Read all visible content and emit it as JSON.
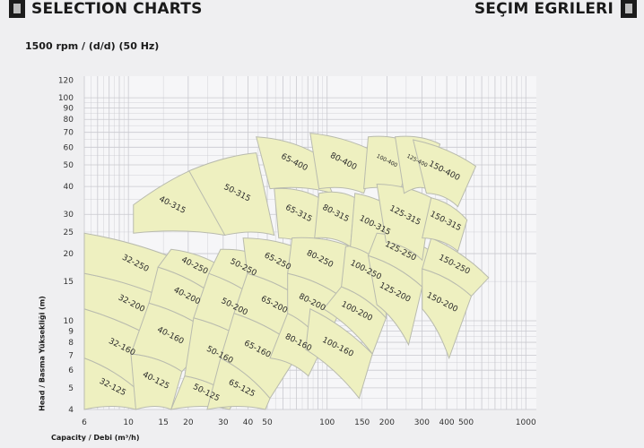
{
  "header": {
    "title_left": "SELECTION CHARTS",
    "title_right": "SEÇIM EGRILERI",
    "icon": "notebook-icon"
  },
  "chart_data": {
    "type": "area",
    "title": "1500 rpm / (d/d) (50 Hz)",
    "xlabel": "Capacity / Debi (m³/h)",
    "ylabel": "Head / Basma Yüksekliği (m)",
    "xscale": "log",
    "yscale": "log",
    "xlim": [
      6,
      1130
    ],
    "ylim": [
      4,
      125
    ],
    "grid": true,
    "fill_color": "#eef0c0",
    "edge_color": "#b9bbae",
    "grid_color": "#c9c9cf",
    "xticks": [
      6,
      10,
      15,
      20,
      30,
      40,
      50,
      100,
      150,
      200,
      300,
      400,
      500,
      1000
    ],
    "yticks": [
      4,
      5,
      6,
      7,
      8,
      9,
      10,
      15,
      20,
      25,
      30,
      40,
      50,
      60,
      70,
      80,
      90,
      100,
      120
    ],
    "regions": [
      {
        "label": "32-125",
        "corners": [
          [
            6,
            6.8
          ],
          [
            11.7,
            4.7
          ],
          [
            10.9,
            4.0
          ],
          [
            6,
            4.0
          ]
        ]
      },
      {
        "label": "32-160",
        "corners": [
          [
            6,
            11.3
          ],
          [
            16.8,
            7.44
          ],
          [
            11.7,
            4.7
          ],
          [
            6,
            6.8
          ]
        ]
      },
      {
        "label": "32-200",
        "corners": [
          [
            6,
            16.3
          ],
          [
            18.2,
            11.8
          ],
          [
            16.8,
            7.44
          ],
          [
            6,
            11.3
          ]
        ]
      },
      {
        "label": "32-250",
        "corners": [
          [
            6,
            24.7
          ],
          [
            20.2,
            17.9
          ],
          [
            18.2,
            11.8
          ],
          [
            6,
            16.3
          ]
        ]
      },
      {
        "label": "40-125",
        "corners": [
          [
            10.3,
            7.1
          ],
          [
            18.6,
            5.92
          ],
          [
            16.4,
            4.0
          ],
          [
            10.9,
            4.0
          ]
        ]
      },
      {
        "label": "40-160",
        "corners": [
          [
            12.7,
            12.0
          ],
          [
            27.6,
            8.55
          ],
          [
            18.6,
            5.92
          ],
          [
            10.3,
            7.1
          ]
        ]
      },
      {
        "label": "40-200",
        "corners": [
          [
            14.1,
            17.4
          ],
          [
            29.1,
            12.4
          ],
          [
            27.6,
            8.55
          ],
          [
            12.7,
            12.0
          ]
        ]
      },
      {
        "label": "40-250",
        "corners": [
          [
            16.4,
            20.9
          ],
          [
            30.6,
            17.1
          ],
          [
            29.1,
            12.4
          ],
          [
            14.1,
            17.4
          ]
        ]
      },
      {
        "label": "40-315",
        "corners": [
          [
            10.6,
            33.1
          ],
          [
            21.3,
            47.9
          ],
          [
            30.6,
            24.2
          ],
          [
            10.6,
            24.7
          ]
        ]
      },
      {
        "label": "50-125",
        "corners": [
          [
            19.2,
            5.65
          ],
          [
            34.7,
            4.49
          ],
          [
            32.3,
            4.0
          ],
          [
            16.4,
            4.0
          ]
        ]
      },
      {
        "label": "50-160",
        "corners": [
          [
            21.3,
            10.3
          ],
          [
            46.5,
            7.44
          ],
          [
            34.7,
            4.49
          ],
          [
            19.2,
            5.65
          ]
        ]
      },
      {
        "label": "50-200",
        "corners": [
          [
            25.4,
            16.3
          ],
          [
            51.6,
            11.3
          ],
          [
            46.5,
            7.44
          ],
          [
            21.3,
            10.3
          ]
        ]
      },
      {
        "label": "50-250",
        "corners": [
          [
            29.1,
            20.9
          ],
          [
            51.6,
            18.7
          ],
          [
            51.6,
            11.3
          ],
          [
            25.4,
            16.3
          ]
        ]
      },
      {
        "label": "50-315",
        "corners": [
          [
            20.2,
            47.0
          ],
          [
            44.0,
            56.6
          ],
          [
            54.2,
            24.2
          ],
          [
            30.6,
            24.2
          ]
        ]
      },
      {
        "label": "65-125",
        "corners": [
          [
            29.1,
            6.8
          ],
          [
            51.6,
            4.49
          ],
          [
            48.9,
            4.0
          ],
          [
            24.9,
            4.0
          ]
        ]
      },
      {
        "label": "65-160",
        "corners": [
          [
            34.0,
            10.8
          ],
          [
            74.0,
            7.44
          ],
          [
            51.6,
            4.49
          ],
          [
            29.1,
            6.8
          ]
        ]
      },
      {
        "label": "65-200",
        "corners": [
          [
            39.7,
            16.3
          ],
          [
            82.2,
            11.8
          ],
          [
            74.0,
            7.44
          ],
          [
            34.0,
            10.8
          ]
        ]
      },
      {
        "label": "65-250",
        "corners": [
          [
            37.8,
            23.5
          ],
          [
            78.0,
            20.5
          ],
          [
            82.2,
            11.8
          ],
          [
            39.7,
            16.3
          ]
        ]
      },
      {
        "label": "65-315",
        "corners": [
          [
            54.2,
            39.1
          ],
          [
            91.0,
            35.6
          ],
          [
            91.0,
            20.5
          ],
          [
            57.1,
            23.5
          ]
        ]
      },
      {
        "label": "65-400",
        "corners": [
          [
            44.0,
            66.8
          ],
          [
            86.5,
            56.6
          ],
          [
            106.5,
            37.3
          ],
          [
            51.6,
            39.1
          ]
        ]
      },
      {
        "label": "80-160",
        "corners": [
          [
            63.3,
            10.8
          ],
          [
            96.0,
            7.8
          ],
          [
            80.5,
            5.65
          ],
          [
            51.6,
            6.8
          ]
        ]
      },
      {
        "label": "80-200",
        "corners": [
          [
            63.3,
            16.3
          ],
          [
            124,
            12.4
          ],
          [
            96.0,
            7.8
          ],
          [
            63.3,
            10.8
          ]
        ]
      },
      {
        "label": "80-250",
        "corners": [
          [
            66.6,
            23.5
          ],
          [
            131,
            21.5
          ],
          [
            124,
            12.4
          ],
          [
            63.3,
            16.3
          ]
        ]
      },
      {
        "label": "80-315",
        "corners": [
          [
            91.0,
            37.3
          ],
          [
            138,
            35.6
          ],
          [
            131,
            21.5
          ],
          [
            86.5,
            23.5
          ]
        ]
      },
      {
        "label": "80-400",
        "corners": [
          [
            82.2,
            69.4
          ],
          [
            178,
            56.6
          ],
          [
            153,
            37.3
          ],
          [
            91.0,
            39.1
          ]
        ]
      },
      {
        "label": "100-160",
        "corners": [
          [
            82.2,
            11.3
          ],
          [
            169,
            7.1
          ],
          [
            145,
            4.49
          ],
          [
            78.0,
            7.44
          ]
        ]
      },
      {
        "label": "100-200",
        "corners": [
          [
            118,
            14.2
          ],
          [
            198,
            10.3
          ],
          [
            169,
            7.1
          ],
          [
            96.0,
            11.3
          ]
        ]
      },
      {
        "label": "100-250",
        "corners": [
          [
            124,
            21.5
          ],
          [
            198,
            20.5
          ],
          [
            198,
            10.3
          ],
          [
            118,
            14.2
          ]
        ]
      },
      {
        "label": "100-315",
        "corners": [
          [
            138,
            37.3
          ],
          [
            244,
            29.7
          ],
          [
            198,
            17.1
          ],
          [
            131,
            21.5
          ]
        ]
      },
      {
        "label": "100-400",
        "corners": [
          [
            161,
            66.8
          ],
          [
            271,
            62.0
          ],
          [
            232,
            37.3
          ],
          [
            153,
            39.1
          ]
        ],
        "small": true
      },
      {
        "label": "125-200",
        "corners": [
          [
            161,
            19.6
          ],
          [
            301,
            14.2
          ],
          [
            257,
            7.8
          ],
          [
            178,
            11.8
          ]
        ]
      },
      {
        "label": "125-250",
        "corners": [
          [
            178,
            24.7
          ],
          [
            334,
            20.5
          ],
          [
            301,
            14.2
          ],
          [
            161,
            19.6
          ]
        ]
      },
      {
        "label": "125-315",
        "corners": [
          [
            178,
            41.0
          ],
          [
            334,
            35.6
          ],
          [
            301,
            18.7
          ],
          [
            198,
            22.5
          ]
        ]
      },
      {
        "label": "125-400",
        "corners": [
          [
            220,
            66.8
          ],
          [
            370,
            62.0
          ],
          [
            316,
            39.1
          ],
          [
            244,
            37.3
          ]
        ],
        "small": true
      },
      {
        "label": "150-200",
        "corners": [
          [
            301,
            17.1
          ],
          [
            532,
            12.9
          ],
          [
            411,
            6.8
          ],
          [
            301,
            11.3
          ]
        ]
      },
      {
        "label": "150-250",
        "corners": [
          [
            334,
            23.5
          ],
          [
            650,
            15.6
          ],
          [
            532,
            12.9
          ],
          [
            301,
            17.1
          ]
        ]
      },
      {
        "label": "150-315",
        "corners": [
          [
            334,
            35.6
          ],
          [
            506,
            28.3
          ],
          [
            455,
            20.5
          ],
          [
            301,
            23.5
          ]
        ]
      },
      {
        "label": "150-400",
        "corners": [
          [
            271,
            64.8
          ],
          [
            560,
            49.3
          ],
          [
            455,
            32.5
          ],
          [
            316,
            37.3
          ]
        ]
      }
    ]
  }
}
